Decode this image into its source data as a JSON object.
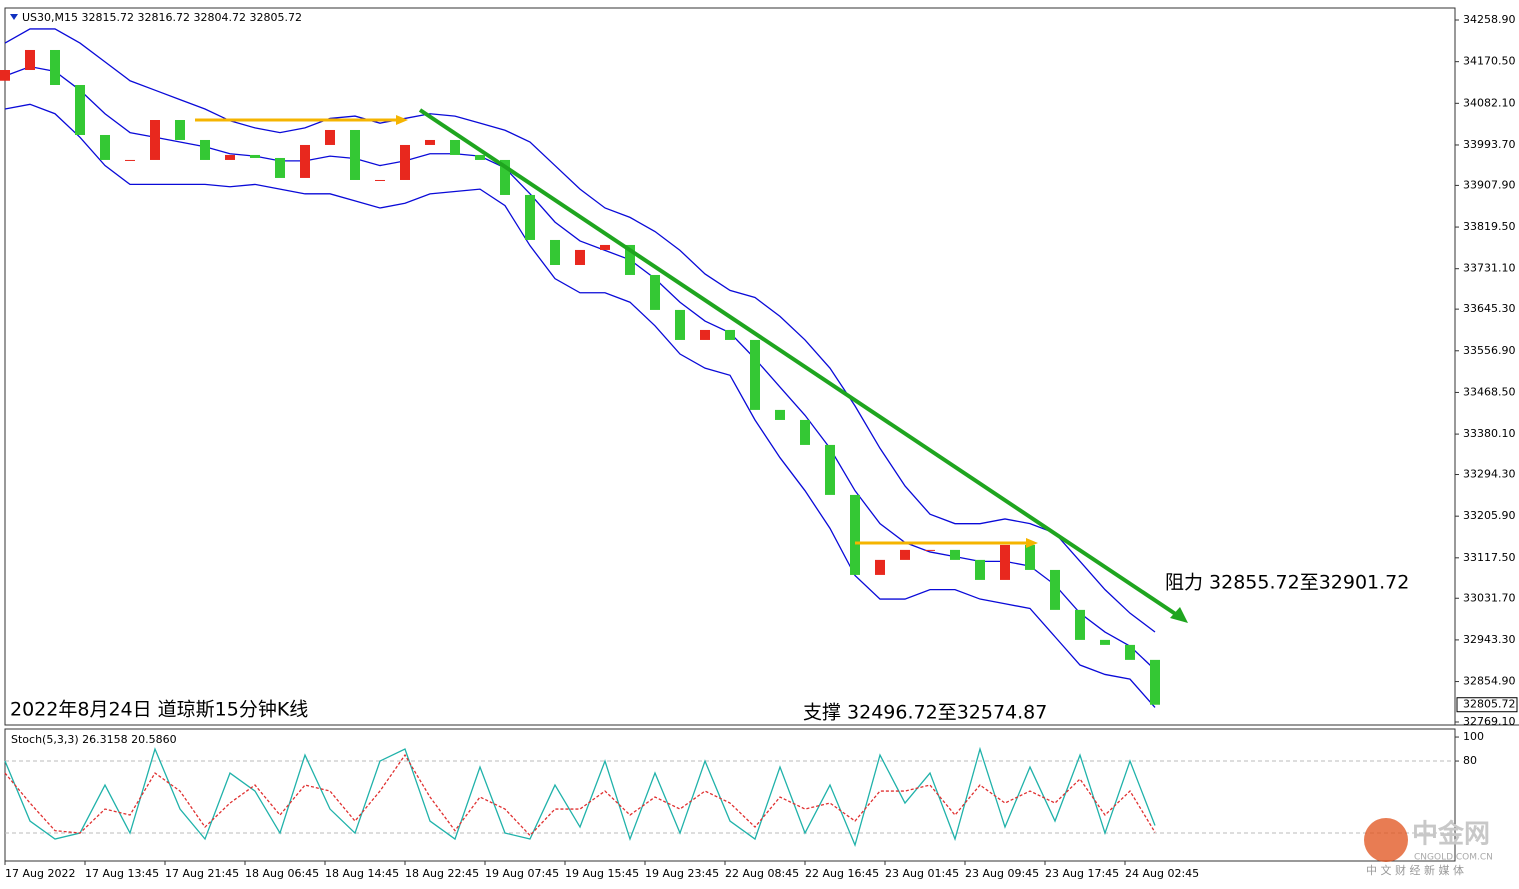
{
  "chart_data": [
    {
      "type": "candlestick",
      "title": "US30,M15  32815.72 32816.72 32804.72 32805.72",
      "annotations": [
        "阻力 32855.72至32901.72",
        "支撑 32496.72至32574.87",
        "2022年8月24日 道琼斯15分钟K线"
      ],
      "x": [
        0,
        10,
        20,
        30,
        40,
        50,
        60,
        70,
        80,
        90,
        100,
        110,
        120,
        130,
        140,
        150,
        160,
        170,
        180,
        190,
        200,
        210,
        220,
        230,
        240,
        250,
        260,
        270,
        280,
        290,
        300,
        310,
        320,
        330,
        340,
        350,
        360,
        370,
        380,
        390,
        400,
        410,
        420,
        430,
        440,
        450,
        460
      ],
      "open": [
        34130,
        34152.8,
        34195.3,
        34121.0,
        34014.9,
        33961.9,
        33961.9,
        34046.7,
        34004.3,
        33961.9,
        33972.5,
        33966.1,
        33923.7,
        33993.7,
        34025.5,
        33919.4,
        33919.4,
        33993.7,
        34004.3,
        33972.5,
        33961.9,
        33887.6,
        33792.1,
        33739.0,
        33770.9,
        33781.5,
        33717.8,
        33643.6,
        33579.9,
        33601.1,
        33579.9,
        33431.4,
        33410.1,
        33357.1,
        33251.0,
        33081.2,
        33113.1,
        33134.3,
        33134.3,
        33113.1,
        33070.6,
        33144.9,
        33091.8,
        33007.0,
        32943.3,
        32932.7,
        32900.9
      ],
      "close": [
        34152.8,
        34195.3,
        34121.0,
        34014.9,
        33961.9,
        33961.9,
        34046.7,
        34004.3,
        33961.9,
        33972.5,
        33966.1,
        33923.7,
        33993.7,
        34025.5,
        33919.4,
        33919.4,
        33993.7,
        34004.3,
        33972.5,
        33961.9,
        33887.6,
        33792.1,
        33739.0,
        33770.9,
        33781.5,
        33717.8,
        33643.6,
        33579.9,
        33601.1,
        33579.9,
        33431.4,
        33410.1,
        33357.1,
        33251.0,
        33081.2,
        33113.1,
        33134.3,
        33134.3,
        33113.1,
        33070.6,
        33144.9,
        33091.8,
        33007.0,
        32943.3,
        32932.7,
        32900.9,
        32805.72
      ],
      "bands": [
        {
          "name": "upper",
          "color": "#0a0ad8",
          "values": [
            34210,
            34240,
            34240,
            34210,
            34170,
            34130,
            34110,
            34090,
            34070,
            34045,
            34030,
            34020,
            34030,
            34050,
            34055,
            34040,
            34050,
            34060,
            34055,
            34040,
            34025,
            34000,
            33950,
            33900,
            33860,
            33840,
            33810,
            33770,
            33720,
            33685,
            33670,
            33630,
            33580,
            33520,
            33440,
            33350,
            33270,
            33210,
            33190,
            33190,
            33200,
            33190,
            33170,
            33110,
            33050,
            33000,
            32960
          ]
        },
        {
          "name": "middle",
          "color": "#0a0ad8",
          "values": [
            34140,
            34160,
            34150,
            34110,
            34060,
            34020,
            34010,
            34000,
            33990,
            33975,
            33970,
            33960,
            33960,
            33970,
            33965,
            33950,
            33960,
            33975,
            33975,
            33970,
            33945,
            33890,
            33830,
            33790,
            33770,
            33750,
            33710,
            33660,
            33620,
            33595,
            33540,
            33480,
            33420,
            33350,
            33260,
            33190,
            33150,
            33130,
            33120,
            33110,
            33110,
            33100,
            33060,
            33000,
            32960,
            32930,
            32880
          ]
        },
        {
          "name": "lower",
          "color": "#0a0ad8",
          "values": [
            34070,
            34080,
            34060,
            34010,
            33950,
            33910,
            33910,
            33910,
            33910,
            33905,
            33910,
            33900,
            33890,
            33890,
            33875,
            33860,
            33870,
            33890,
            33895,
            33900,
            33865,
            33780,
            33710,
            33680,
            33680,
            33660,
            33610,
            33550,
            33520,
            33505,
            33410,
            33330,
            33260,
            33180,
            33080,
            33030,
            33030,
            33050,
            33050,
            33030,
            33020,
            33010,
            32950,
            32890,
            32870,
            32860,
            32800
          ]
        }
      ],
      "up_color": "#e8281e",
      "down_color": "#34c834",
      "xlim": [
        0,
        580
      ],
      "ylim": [
        32762.7,
        34284.4
      ],
      "yticks": [
        {
          "value": 34258.9,
          "label": "34258.90"
        },
        {
          "value": 34170.5,
          "label": "34170.50"
        },
        {
          "value": 34082.1,
          "label": "34082.10"
        },
        {
          "value": 33993.7,
          "label": "33993.70"
        },
        {
          "value": 33907.9,
          "label": "33907.90"
        },
        {
          "value": 33819.5,
          "label": "33819.50"
        },
        {
          "value": 33731.1,
          "label": "33731.10"
        },
        {
          "value": 33645.3,
          "label": "33645.30"
        },
        {
          "value": 33556.9,
          "label": "33556.90"
        },
        {
          "value": 33468.5,
          "label": "33468.50"
        },
        {
          "value": 33380.1,
          "label": "33380.10"
        },
        {
          "value": 33294.3,
          "label": "33294.30"
        },
        {
          "value": 33205.9,
          "label": "33205.90"
        },
        {
          "value": 33117.5,
          "label": "33117.50"
        },
        {
          "value": 33031.7,
          "label": "33031.70"
        },
        {
          "value": 32943.3,
          "label": "32943.30"
        },
        {
          "value": 32854.9,
          "label": "32854.90"
        },
        {
          "value": 32769.1,
          "label": "32769.10"
        }
      ]
    },
    {
      "type": "line",
      "title": "Stoch(5,3,3) 26.3158 20.5860",
      "x": [
        0,
        10,
        20,
        30,
        40,
        50,
        60,
        70,
        80,
        90,
        100,
        110,
        120,
        130,
        140,
        150,
        160,
        170,
        180,
        190,
        200,
        210,
        220,
        230,
        240,
        250,
        260,
        270,
        280,
        290,
        300,
        310,
        320,
        330,
        340,
        350,
        360,
        370,
        380,
        390,
        400,
        410,
        420,
        430,
        440,
        450,
        460
      ],
      "series": [
        {
          "name": "main",
          "color": "#20b2aa",
          "values": [
            80,
            30,
            15,
            20,
            60,
            20,
            90,
            40,
            15,
            70,
            55,
            20,
            85,
            40,
            20,
            80,
            90,
            30,
            15,
            75,
            20,
            15,
            60,
            25,
            80,
            15,
            70,
            20,
            80,
            30,
            15,
            75,
            20,
            60,
            10,
            85,
            45,
            70,
            15,
            90,
            25,
            75,
            30,
            85,
            20,
            80,
            26.3158
          ]
        },
        {
          "name": "signal",
          "color": "#e03030",
          "values": [
            70,
            45,
            22,
            20,
            40,
            35,
            70,
            55,
            25,
            45,
            60,
            35,
            60,
            55,
            30,
            55,
            85,
            50,
            22,
            50,
            40,
            18,
            40,
            40,
            55,
            35,
            50,
            40,
            55,
            45,
            25,
            50,
            40,
            45,
            30,
            55,
            55,
            60,
            35,
            60,
            45,
            55,
            45,
            65,
            35,
            55,
            20.586
          ]
        }
      ],
      "levels": [
        80,
        20
      ],
      "xlim": [
        0,
        580
      ],
      "ylim": [
        -3.3,
        106.7
      ],
      "yticks": [
        100,
        80
      ],
      "xticks": [
        {
          "value": 0,
          "label": "17 Aug 2022"
        },
        {
          "value": 32,
          "label": "17 Aug 13:45"
        },
        {
          "value": 64,
          "label": "17 Aug 21:45"
        },
        {
          "value": 96,
          "label": "18 Aug 06:45"
        },
        {
          "value": 128,
          "label": "18 Aug 14:45"
        },
        {
          "value": 160,
          "label": "18 Aug 22:45"
        },
        {
          "value": 192,
          "label": "19 Aug 07:45"
        },
        {
          "value": 224,
          "label": "19 Aug 15:45"
        },
        {
          "value": 256,
          "label": "19 Aug 23:45"
        },
        {
          "value": 288,
          "label": "22 Aug 08:45"
        },
        {
          "value": 320,
          "label": "22 Aug 16:45"
        },
        {
          "value": 352,
          "label": "23 Aug 01:45"
        },
        {
          "value": 384,
          "label": "23 Aug 09:45"
        },
        {
          "value": 416,
          "label": "23 Aug 17:45"
        },
        {
          "value": 448,
          "label": "24 Aug 02:45"
        }
      ]
    }
  ],
  "watermark": {
    "name": "中金网",
    "domain": "CNGOLD.COM.CN",
    "slogan": "中 文 财 经 新 媒 体"
  }
}
